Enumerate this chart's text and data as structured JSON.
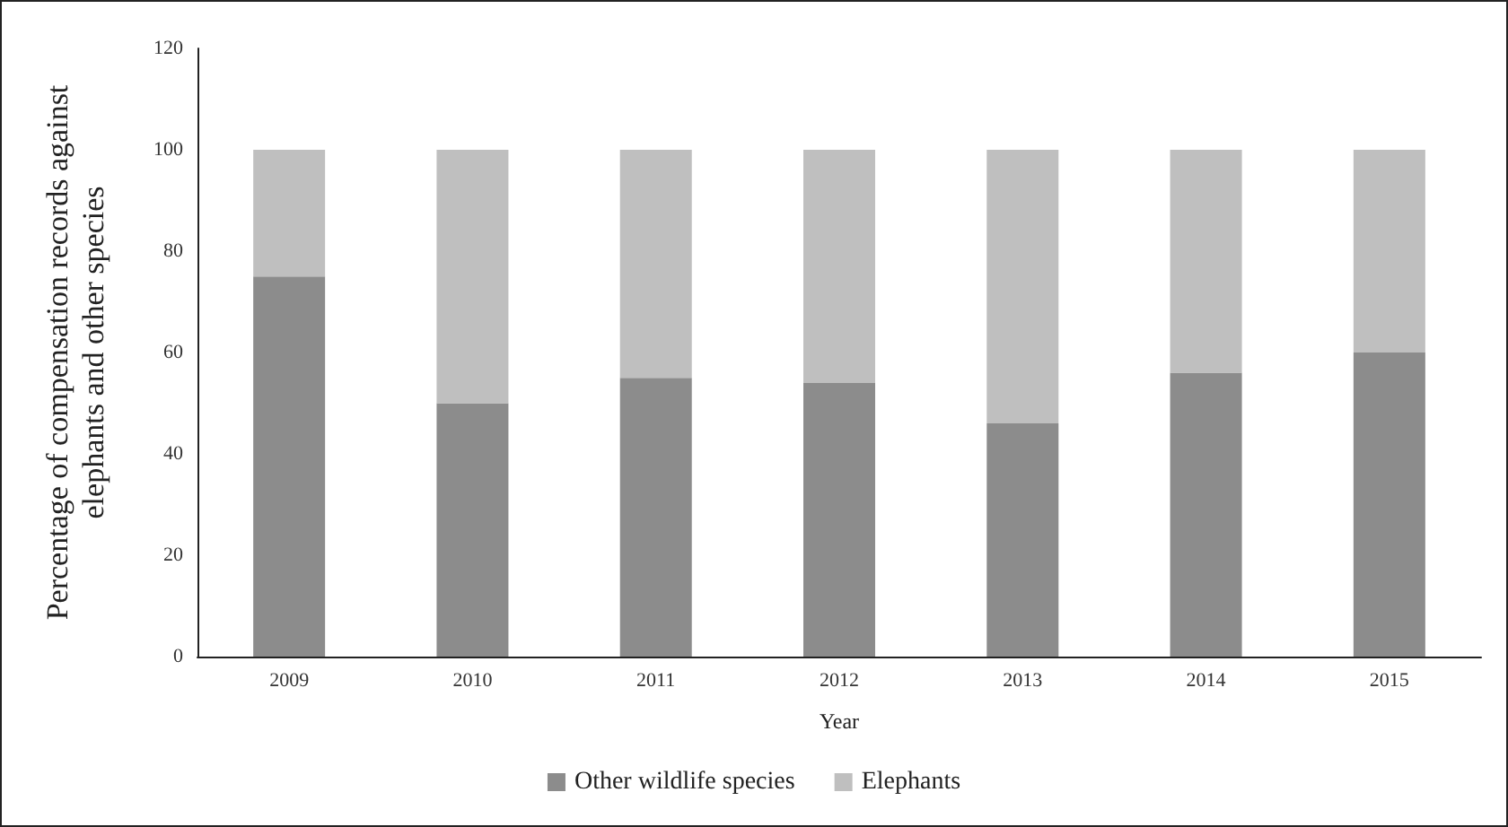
{
  "chart_data": {
    "type": "bar",
    "stacked": true,
    "xlabel": "Year",
    "ylabel": "Percentage of compensation records against\nelephants and other species",
    "categories": [
      "2009",
      "2010",
      "2011",
      "2012",
      "2013",
      "2014",
      "2015"
    ],
    "series": [
      {
        "name": "Other wildlife species",
        "color": "#8c8c8c",
        "values": [
          75,
          50,
          55,
          54,
          46,
          56,
          60
        ]
      },
      {
        "name": "Elephants",
        "color": "#bfbfbf",
        "values": [
          25,
          50,
          45,
          46,
          54,
          44,
          40
        ]
      }
    ],
    "ylim": [
      0,
      120
    ],
    "yticks": [
      0,
      20,
      40,
      60,
      80,
      100,
      120
    ],
    "grid": false,
    "legend": "bottom"
  }
}
